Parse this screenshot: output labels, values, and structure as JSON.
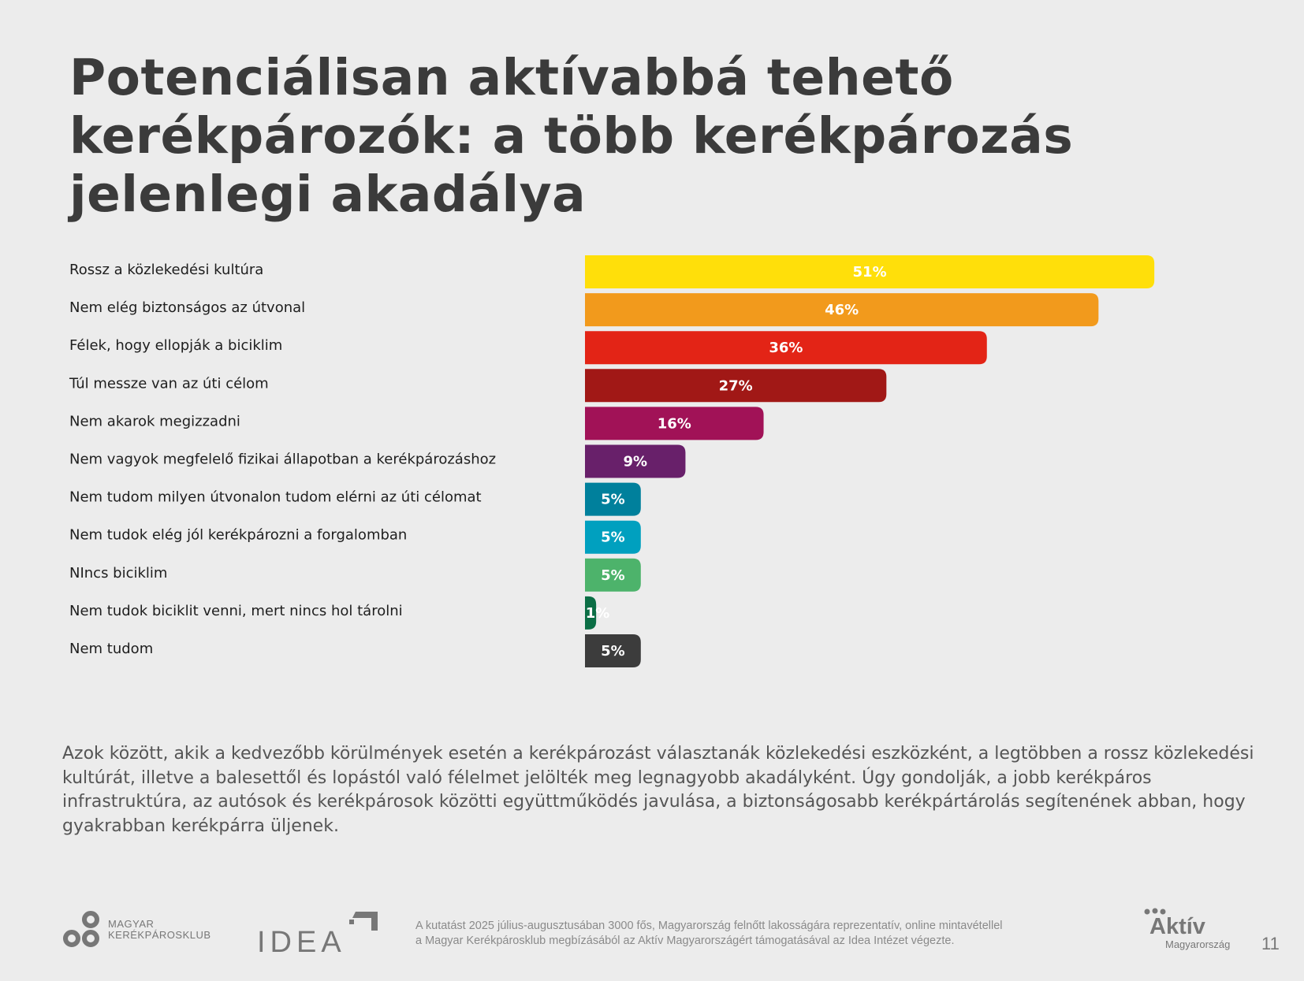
{
  "title": "Potenciálisan aktívabbá tehető kerékpározók: a több kerékpározás jelenlegi akadálya",
  "chart_data": {
    "type": "bar",
    "orientation": "horizontal",
    "title": "",
    "xlabel": "",
    "ylabel": "",
    "xlim": [
      0,
      51
    ],
    "grid": false,
    "categories": [
      "Rossz a közlekedési kultúra",
      "Nem elég biztonságos az útvonal",
      "Félek, hogy ellopják a biciklim",
      "Túl messze van az úti célom",
      "Nem akarok megizzadni",
      "Nem vagyok megfelelő fizikai állapotban a kerékpározáshoz",
      "Nem tudom milyen útvonalon tudom elérni az úti célomat",
      "Nem tudok elég jól kerékpározni a forgalomban",
      "NIncs biciklim",
      "Nem tudok biciklit venni, mert nincs hol tárolni",
      "Nem tudom"
    ],
    "values": [
      51,
      46,
      36,
      27,
      16,
      9,
      5,
      5,
      5,
      1,
      5
    ],
    "data_labels": [
      "51%",
      "46%",
      "36%",
      "27%",
      "16%",
      "9%",
      "5%",
      "5%",
      "5%",
      "1%",
      "5%"
    ],
    "colors": [
      "#FFDF0A",
      "#F29A1C",
      "#E32416",
      "#A11816",
      "#A11257",
      "#68206A",
      "#00809C",
      "#00A0BF",
      "#4DB36B",
      "#0B6E45",
      "#3C3C3C"
    ]
  },
  "paragraph": "Azok között, akik a kedvezőbb körülmények esetén a kerékpározást választanák közlekedési eszközként, a legtöbben a rossz közlekedési kultúrát, illetve a balesettől és lopástól való félelmet jelölték meg legnagyobb akadályként. Úgy gondolják, a jobb kerékpáros infrastruktúra, az autósok és kerékpárosok közötti együttműködés javulása, a biztonságosabb kerékpártárolás segítenének abban, hogy gyakrabban kerékpárra üljenek.",
  "footer": {
    "note_line1": "A kutatást 2025 július-augusztusában 3000 fős, Magyarország felnőtt lakosságára reprezentatív, online mintavétellel",
    "note_line2": "a Magyar Kerékpárosklub megbízásából az Aktív Magyarországért támogatásával az Idea Intézet végezte.",
    "logo_mk_line1": "MAGYAR",
    "logo_mk_line2": "KERÉKPÁROSKLUB",
    "logo_idea": "IDEA",
    "logo_aktiv": "Aktív",
    "logo_aktiv_sub": "Magyarország",
    "page_number": "11"
  }
}
